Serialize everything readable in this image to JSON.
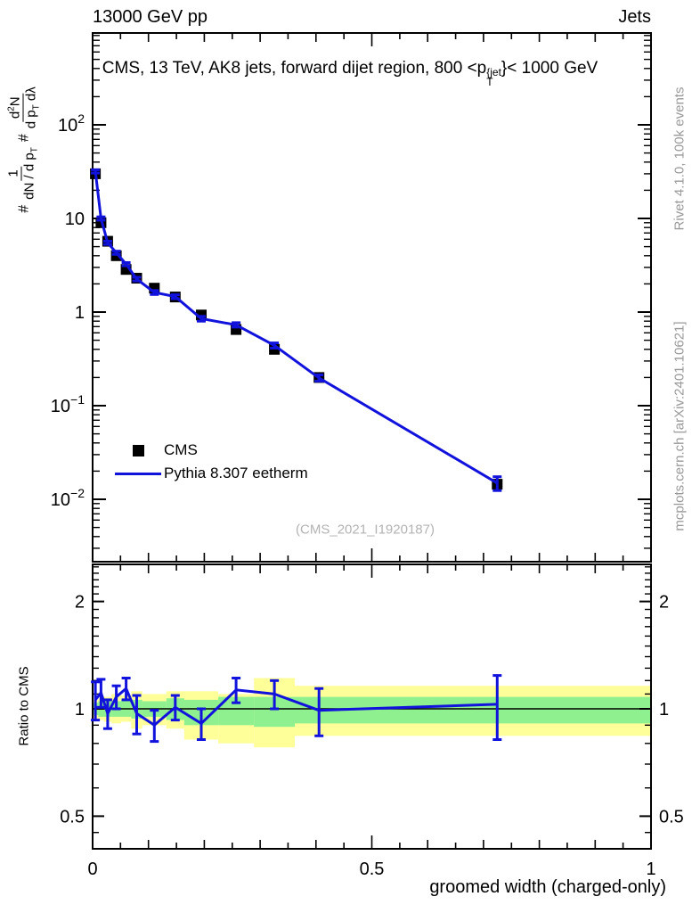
{
  "header": {
    "left": "13000 GeV pp",
    "right": "Jets"
  },
  "title": {
    "pre": "CMS, 13 TeV, AK8 jets, forward dijet region, 800 <p",
    "sup": "{jet",
    "sub": "T",
    "post": "}< 1000 GeV"
  },
  "ylabel": {
    "hash1": "#",
    "frac1_num": "1",
    "frac1_den_main": "dN / d p",
    "frac1_den_sub": "T",
    "hash2": "#",
    "frac2_num_d": "d",
    "frac2_num_exp": "2",
    "frac2_num_N": "N",
    "frac2_den_main": "d p",
    "frac2_den_sub": "T",
    "frac2_den_tail": " dλ"
  },
  "side_text_top": "Rivet 4.1.0,  100k events",
  "side_text_bottom": "mcplots.cern.ch [arXiv:2401.10621]",
  "watermark": "(CMS_2021_I1920187)",
  "ratio_label": "Ratio to CMS",
  "xlabel": "groomed width (charged-only)",
  "legend": [
    {
      "label": "CMS",
      "marker": "square",
      "color": "#000000"
    },
    {
      "label": "Pythia 8.307 eetherm",
      "marker": "line",
      "color": "#1212dd"
    }
  ],
  "colors": {
    "mc_blue": "#1212dd",
    "band_yellow": "#ffff99",
    "band_green": "#8ef08e",
    "gray_text": "#999999"
  },
  "chart_data": {
    "type": "line",
    "title": "CMS, 13 TeV, AK8 jets, forward dijet region, 800 < pT{jet} < 1000 GeV",
    "xlabel": "groomed width (charged-only)",
    "ylabel": "# 1/(dN/dpT) # d2N/(dpT dlambda)",
    "ratio_ylabel": "Ratio to CMS",
    "log_y": true,
    "xlim": [
      0,
      1
    ],
    "ylim_main": [
      0.00214,
      955
    ],
    "ylim_ratio": [
      0.405,
      2.54
    ],
    "bin_edges": [
      0,
      0.01,
      0.02,
      0.034,
      0.051,
      0.069,
      0.089,
      0.132,
      0.164,
      0.225,
      0.289,
      0.362,
      0.449,
      1.0
    ],
    "x": [
      0.005,
      0.015,
      0.027,
      0.0425,
      0.06,
      0.079,
      0.1105,
      0.148,
      0.1945,
      0.257,
      0.3255,
      0.4055,
      0.7245
    ],
    "cms": {
      "name": "CMS",
      "values": [
        30,
        9.0,
        5.7,
        4.0,
        2.85,
        2.3,
        1.8,
        1.45,
        0.93,
        0.65,
        0.4,
        0.2,
        0.0145
      ],
      "errors": [
        1.5,
        0.45,
        0.3,
        0.2,
        0.15,
        0.12,
        0.09,
        0.07,
        0.055,
        0.04,
        0.025,
        0.013,
        0.002
      ]
    },
    "pythia": {
      "name": "Pythia 8.307 eetherm",
      "values": [
        31.8,
        10.0,
        5.5,
        4.3,
        3.25,
        2.25,
        1.62,
        1.46,
        0.85,
        0.73,
        0.44,
        0.198,
        0.0149
      ],
      "errors": [
        1.3,
        0.4,
        0.22,
        0.17,
        0.13,
        0.1,
        0.08,
        0.07,
        0.05,
        0.04,
        0.028,
        0.015,
        0.0025
      ]
    },
    "ratio": {
      "values": [
        1.06,
        1.11,
        0.97,
        1.08,
        1.14,
        0.97,
        0.9,
        1.01,
        0.91,
        1.13,
        1.1,
        0.99,
        1.03
      ],
      "errors": [
        0.13,
        0.1,
        0.09,
        0.08,
        0.08,
        0.12,
        0.09,
        0.08,
        0.09,
        0.09,
        0.1,
        0.15,
        0.21
      ]
    },
    "bands": {
      "yellow_lo": [
        0.94,
        0.93,
        0.92,
        0.91,
        0.92,
        0.88,
        0.9,
        0.88,
        0.82,
        0.8,
        0.78,
        0.84,
        0.84
      ],
      "yellow_hi": [
        1.06,
        1.07,
        1.08,
        1.1,
        1.09,
        1.12,
        1.1,
        1.12,
        1.12,
        1.1,
        1.22,
        1.16,
        1.16
      ],
      "green_lo": [
        0.96,
        0.95,
        0.95,
        0.95,
        0.95,
        0.94,
        0.95,
        0.93,
        0.9,
        0.9,
        0.89,
        0.91,
        0.91
      ],
      "green_hi": [
        1.04,
        1.05,
        1.05,
        1.05,
        1.06,
        1.06,
        1.05,
        1.07,
        1.06,
        1.08,
        1.08,
        1.08,
        1.08
      ]
    },
    "axes": {
      "main_y_ticks": [
        {
          "v": 100,
          "base": "10",
          "exp": "2"
        },
        {
          "v": 10,
          "base": "10",
          "exp": ""
        },
        {
          "v": 1,
          "base": "1",
          "exp": ""
        },
        {
          "v": 0.1,
          "base": "10",
          "exp": "−1"
        },
        {
          "v": 0.01,
          "base": "10",
          "exp": "−2"
        }
      ],
      "ratio_y_ticks": [
        {
          "v": 2,
          "label": "2"
        },
        {
          "v": 1,
          "label": "1"
        },
        {
          "v": 0.5,
          "label": "0.5"
        }
      ],
      "x_ticks": [
        {
          "v": 0,
          "label": "0"
        },
        {
          "v": 0.5,
          "label": "0.5"
        },
        {
          "v": 1,
          "label": "1"
        }
      ]
    }
  }
}
